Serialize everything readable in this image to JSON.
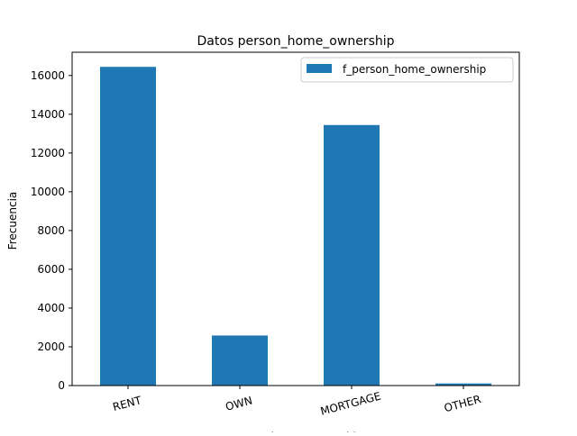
{
  "chart_data": {
    "type": "bar",
    "title": "Datos person_home_ownership",
    "xlabel": "person_home_ownership",
    "ylabel": "Frecuencia",
    "categories": [
      "RENT",
      "OWN",
      "MORTGAGE",
      "OTHER"
    ],
    "series": [
      {
        "name": "f_person_home_ownership",
        "values": [
          16446,
          2584,
          13444,
          107
        ],
        "color": "#1f77b4"
      }
    ],
    "ylim": [
      0,
      17200
    ],
    "yticks": [
      0,
      2000,
      4000,
      6000,
      8000,
      10000,
      12000,
      14000,
      16000
    ],
    "xtick_rotation": -15,
    "grid": false,
    "legend_position": "top-right"
  }
}
